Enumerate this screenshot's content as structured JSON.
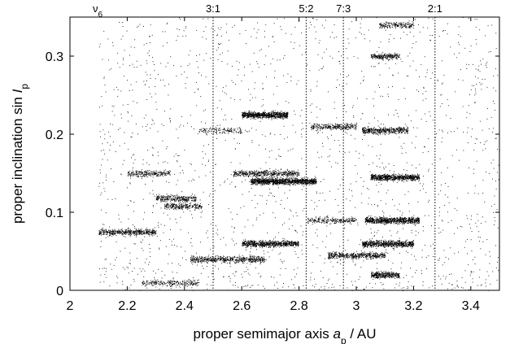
{
  "chart_data": {
    "type": "scatter",
    "xlabel": "proper semimajor axis a_p / AU",
    "ylabel": "proper inclination sin I_p",
    "xlabel_parts": {
      "pre": "proper semimajor axis ",
      "sym": "a",
      "sub": "p",
      "post": " / AU"
    },
    "ylabel_parts": {
      "pre": "proper inclination sin ",
      "sym": "I",
      "sub": "p"
    },
    "xlim": [
      2.0,
      3.5
    ],
    "ylim": [
      0.0,
      0.35
    ],
    "x_ticks": [
      2,
      2.2,
      2.4,
      2.6,
      2.8,
      3,
      3.2,
      3.4
    ],
    "x_tick_labels": [
      "2",
      "2.2",
      "2.4",
      "2.6",
      "2.8",
      "3",
      "3.2",
      "3.4"
    ],
    "y_ticks": [
      0,
      0.1,
      0.2,
      0.3
    ],
    "y_tick_labels": [
      "0",
      "0.1",
      "0.2",
      "0.3"
    ],
    "grid": false,
    "legend": "none",
    "resonances": [
      {
        "label": "3:1",
        "x": 2.5
      },
      {
        "label": "5:2",
        "x": 2.825
      },
      {
        "label": "7:3",
        "x": 2.955
      },
      {
        "label": "2:1",
        "x": 3.275
      }
    ],
    "secular_label": {
      "sym": "ν",
      "sub": "6",
      "x": 2.1
    },
    "point_color": "#000000",
    "point_count_approx": 12000,
    "families": [
      {
        "x": [
          2.1,
          2.3
        ],
        "y": 0.075,
        "n": 500
      },
      {
        "x": [
          2.2,
          2.35
        ],
        "y": 0.15,
        "n": 250
      },
      {
        "x": [
          2.3,
          2.44
        ],
        "y": 0.118,
        "n": 300
      },
      {
        "x": [
          2.33,
          2.46
        ],
        "y": 0.108,
        "n": 250
      },
      {
        "x": [
          2.25,
          2.45
        ],
        "y": 0.01,
        "n": 250
      },
      {
        "x": [
          2.42,
          2.68
        ],
        "y": 0.04,
        "n": 600
      },
      {
        "x": [
          2.6,
          2.76
        ],
        "y": 0.225,
        "n": 800
      },
      {
        "x": [
          2.57,
          2.8
        ],
        "y": 0.15,
        "n": 500
      },
      {
        "x": [
          2.63,
          2.86
        ],
        "y": 0.14,
        "n": 1200
      },
      {
        "x": [
          2.6,
          2.8
        ],
        "y": 0.06,
        "n": 700
      },
      {
        "x": [
          2.83,
          3.0
        ],
        "y": 0.09,
        "n": 250
      },
      {
        "x": [
          2.84,
          3.0
        ],
        "y": 0.21,
        "n": 300
      },
      {
        "x": [
          2.9,
          3.1
        ],
        "y": 0.045,
        "n": 500
      },
      {
        "x": [
          3.03,
          3.22
        ],
        "y": 0.09,
        "n": 800
      },
      {
        "x": [
          3.05,
          3.22
        ],
        "y": 0.145,
        "n": 700
      },
      {
        "x": [
          3.02,
          3.18
        ],
        "y": 0.205,
        "n": 450
      },
      {
        "x": [
          3.05,
          3.15
        ],
        "y": 0.3,
        "n": 250
      },
      {
        "x": [
          3.02,
          3.2
        ],
        "y": 0.06,
        "n": 700
      },
      {
        "x": [
          3.08,
          3.2
        ],
        "y": 0.34,
        "n": 200
      },
      {
        "x": [
          2.45,
          2.6
        ],
        "y": 0.205,
        "n": 150
      },
      {
        "x": [
          3.05,
          3.15
        ],
        "y": 0.02,
        "n": 350
      }
    ]
  }
}
